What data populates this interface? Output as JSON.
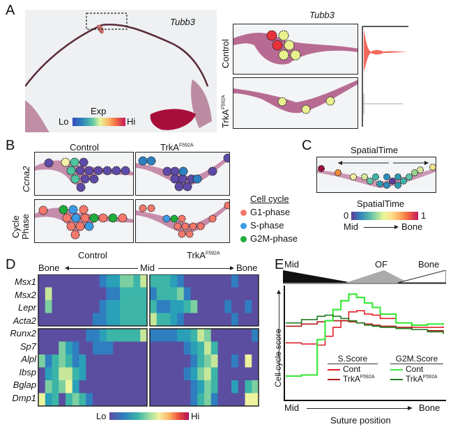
{
  "panelA": {
    "letter": "A",
    "gene_main": "Tubb3",
    "gene_zoom": "Tubb3",
    "colorbar_title": "Exp",
    "colorbar_lo": "Lo",
    "colorbar_hi": "Hi",
    "row_control": "Control",
    "row_mutant": "TrkA",
    "row_mutant_sup": "F592A",
    "colors": {
      "hi": "#b0103a",
      "mid": "#e9f08e",
      "red": "#e8323a",
      "violin": "#f26a5e"
    }
  },
  "panelB": {
    "letter": "B",
    "col_control": "Control",
    "col_mutant": "TrkA",
    "col_mutant_sup": "F592A",
    "row_gene": "Ccna2",
    "row_phase_line1": "Cycle",
    "row_phase_line2": "Phase",
    "legend_title": "Cell cycle",
    "legend": [
      {
        "label": "G1-phase",
        "color": "#f4786b"
      },
      {
        "label": "S-phase",
        "color": "#3b9ce6"
      },
      {
        "label": "G2M-phase",
        "color": "#1fae3a"
      }
    ]
  },
  "panelC": {
    "letter": "C",
    "title": "SpatialTime",
    "colorbar_title": "SpatialTime",
    "colorbar_min": "0",
    "colorbar_max": "1",
    "axis_left": "Mid",
    "axis_right": "Bone"
  },
  "panelD": {
    "letter": "D",
    "col_control": "Control",
    "col_mutant": "TrkA",
    "col_mutant_sup": "F592A",
    "axis_left": "Bone",
    "axis_mid": "Mid",
    "axis_right": "Bone",
    "genes_top": [
      "Msx1",
      "Msx2",
      "Lepr",
      "Acta2"
    ],
    "genes_bottom": [
      "Runx2",
      "Sp7",
      "Alpl",
      "Ibsp",
      "Bglap",
      "Dmp1"
    ],
    "colorbar_lo": "Lo",
    "colorbar_hi": "Hi"
  },
  "chart_data": {
    "type": "line",
    "title": "",
    "xlabel": "Suture position",
    "ylabel": "Cell cycle score",
    "x_start_label": "Mid",
    "x_end_label": "Bone",
    "zone_labels": [
      "Mid",
      "OF",
      "Bone"
    ],
    "legend": {
      "groups": [
        {
          "title": "S.Score",
          "entries": [
            {
              "name": "Cont",
              "color": "#e0202a"
            },
            {
              "name": "TrkA",
              "sup": "F592A",
              "color": "#b01a1a"
            }
          ]
        },
        {
          "title": "G2M.Score",
          "entries": [
            {
              "name": "Cont",
              "color": "#3de83d"
            },
            {
              "name": "TrkA",
              "sup": "F592A",
              "color": "#1f7a1f"
            }
          ]
        }
      ],
      "placement": "bottom-right"
    },
    "x": [
      0,
      0.1,
      0.2,
      0.25,
      0.3,
      0.35,
      0.4,
      0.45,
      0.5,
      0.55,
      0.6,
      0.7,
      0.8,
      0.9,
      1.0
    ],
    "ylim": [
      0,
      1
    ],
    "series": [
      {
        "name": "S.Score Cont",
        "color": "#e0202a",
        "values": [
          0.52,
          0.51,
          0.5,
          0.58,
          0.66,
          0.72,
          0.8,
          0.81,
          0.78,
          0.77,
          0.74,
          0.7,
          0.66,
          0.66,
          0.67
        ]
      },
      {
        "name": "S.Score TrkA F592A",
        "color": "#b01a1a",
        "values": [
          0.67,
          0.69,
          0.71,
          0.72,
          0.72,
          0.72,
          0.71,
          0.7,
          0.69,
          0.68,
          0.67,
          0.66,
          0.64,
          0.63,
          0.62
        ]
      },
      {
        "name": "G2M.Score Cont",
        "color": "#3de83d",
        "values": [
          0.22,
          0.23,
          0.55,
          0.72,
          0.82,
          0.9,
          0.96,
          0.93,
          0.88,
          0.84,
          0.78,
          0.7,
          0.68,
          0.69,
          0.7
        ]
      },
      {
        "name": "G2M.Score TrkA F592A",
        "color": "#1f7a1f",
        "values": [
          0.7,
          0.73,
          0.76,
          0.77,
          0.76,
          0.74,
          0.72,
          0.7,
          0.68,
          0.67,
          0.66,
          0.65,
          0.64,
          0.62,
          0.6
        ]
      }
    ]
  },
  "panelE": {
    "letter": "E"
  }
}
